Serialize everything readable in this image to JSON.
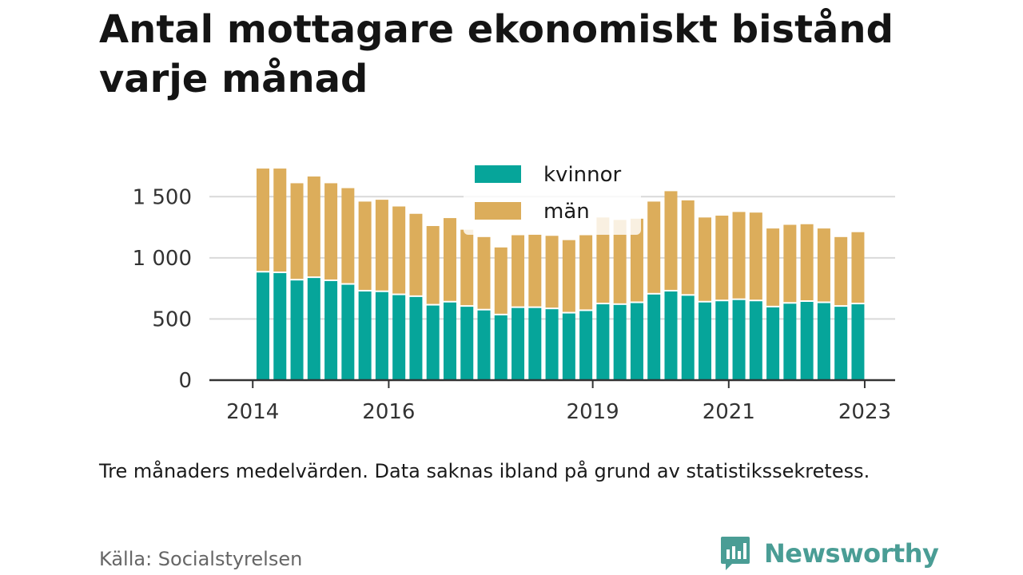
{
  "title": "Antal mottagare ekonomiskt bistånd varje månad",
  "note": "Tre månaders medelvärden. Data saknas ibland på grund av statistikssekretess.",
  "source": "Källa: Socialstyrelsen",
  "brand": {
    "name": "Newsworthy",
    "icon": "newsworthy-logo-icon",
    "color": "#4a9d95"
  },
  "colors": {
    "kvinnor": "#06a59a",
    "man": "#dcad5b",
    "grid": "#d9d9d9",
    "axis": "#333333"
  },
  "chart_data": {
    "type": "bar",
    "stacked": true,
    "ylim": [
      0,
      1750
    ],
    "yticks": [
      0,
      500,
      1000,
      1500
    ],
    "ytick_labels": [
      "0",
      "500",
      "1 000",
      "1 500"
    ],
    "xticks": [
      {
        "label": "2014",
        "pos": -0.6
      },
      {
        "label": "2016",
        "pos": 7.4
      },
      {
        "label": "2019",
        "pos": 19.4
      },
      {
        "label": "2021",
        "pos": 27.4
      },
      {
        "label": "2023",
        "pos": 35.4
      }
    ],
    "legend_position": "top-center",
    "series": [
      {
        "name": "kvinnor",
        "values": [
          880,
          875,
          815,
          835,
          810,
          780,
          725,
          720,
          695,
          680,
          610,
          635,
          600,
          570,
          530,
          590,
          590,
          580,
          545,
          565,
          620,
          615,
          630,
          700,
          725,
          690,
          635,
          645,
          655,
          645,
          595,
          625,
          640,
          630,
          600,
          620
        ]
      },
      {
        "name": "män",
        "values": [
          850,
          855,
          795,
          830,
          800,
          790,
          735,
          755,
          725,
          680,
          650,
          690,
          630,
          600,
          555,
          595,
          600,
          600,
          600,
          620,
          710,
          695,
          690,
          760,
          820,
          780,
          695,
          700,
          720,
          725,
          645,
          645,
          635,
          610,
          570,
          590
        ]
      }
    ]
  }
}
